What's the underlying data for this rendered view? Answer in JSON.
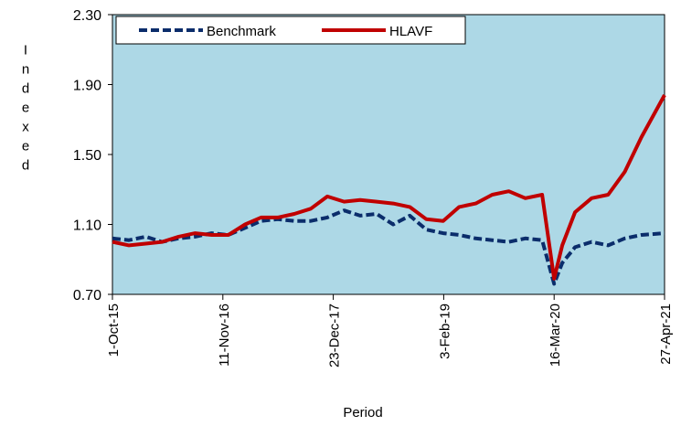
{
  "chart_data": {
    "type": "line",
    "x_label": "Period",
    "y_label": "Indexed",
    "x": [
      "2015-10-01",
      "2015-12-01",
      "2016-02-01",
      "2016-04-01",
      "2016-06-01",
      "2016-08-01",
      "2016-10-01",
      "2016-12-01",
      "2017-02-01",
      "2017-04-01",
      "2017-06-01",
      "2017-08-01",
      "2017-10-01",
      "2017-12-01",
      "2018-02-01",
      "2018-04-01",
      "2018-06-01",
      "2018-08-01",
      "2018-10-01",
      "2018-12-01",
      "2019-02-01",
      "2019-04-01",
      "2019-06-01",
      "2019-08-01",
      "2019-10-01",
      "2019-12-01",
      "2020-02-01",
      "2020-03-16",
      "2020-04-15",
      "2020-06-01",
      "2020-08-01",
      "2020-10-01",
      "2020-12-01",
      "2021-02-01",
      "2021-04-27"
    ],
    "series": [
      {
        "name": "Benchmark",
        "color": "#0b2d6b",
        "dashed": true,
        "values": [
          1.02,
          1.01,
          1.03,
          1.0,
          1.02,
          1.03,
          1.05,
          1.04,
          1.08,
          1.12,
          1.13,
          1.12,
          1.12,
          1.14,
          1.18,
          1.15,
          1.16,
          1.1,
          1.15,
          1.07,
          1.05,
          1.04,
          1.02,
          1.01,
          1.0,
          1.02,
          1.01,
          0.76,
          0.88,
          0.97,
          1.0,
          0.98,
          1.02,
          1.04,
          1.05
        ]
      },
      {
        "name": "HLAVF",
        "color": "#c00000",
        "dashed": false,
        "values": [
          1.0,
          0.98,
          0.99,
          1.0,
          1.03,
          1.05,
          1.04,
          1.04,
          1.1,
          1.14,
          1.14,
          1.16,
          1.19,
          1.26,
          1.23,
          1.24,
          1.23,
          1.22,
          1.2,
          1.13,
          1.12,
          1.2,
          1.22,
          1.27,
          1.29,
          1.25,
          1.27,
          0.79,
          0.98,
          1.17,
          1.25,
          1.27,
          1.4,
          1.6,
          1.84
        ]
      }
    ],
    "xlim": [
      "2015-10-01",
      "2021-04-27"
    ],
    "xticks": [
      {
        "value": "2015-10-01",
        "label": "1-Oct-15"
      },
      {
        "value": "2016-11-11",
        "label": "11-Nov-16"
      },
      {
        "value": "2017-12-23",
        "label": "23-Dec-17"
      },
      {
        "value": "2019-02-03",
        "label": "3-Feb-19"
      },
      {
        "value": "2020-03-16",
        "label": "16-Mar-20"
      },
      {
        "value": "2021-04-27",
        "label": "27-Apr-21"
      }
    ],
    "ylim": [
      0.7,
      2.3
    ],
    "yticks": [
      {
        "value": 0.7,
        "label": "0.70"
      },
      {
        "value": 1.1,
        "label": "1.10"
      },
      {
        "value": 1.5,
        "label": "1.50"
      },
      {
        "value": 1.9,
        "label": "1.90"
      },
      {
        "value": 2.3,
        "label": "2.30"
      }
    ],
    "plot_background": "#add8e6",
    "legend": "top-left"
  }
}
